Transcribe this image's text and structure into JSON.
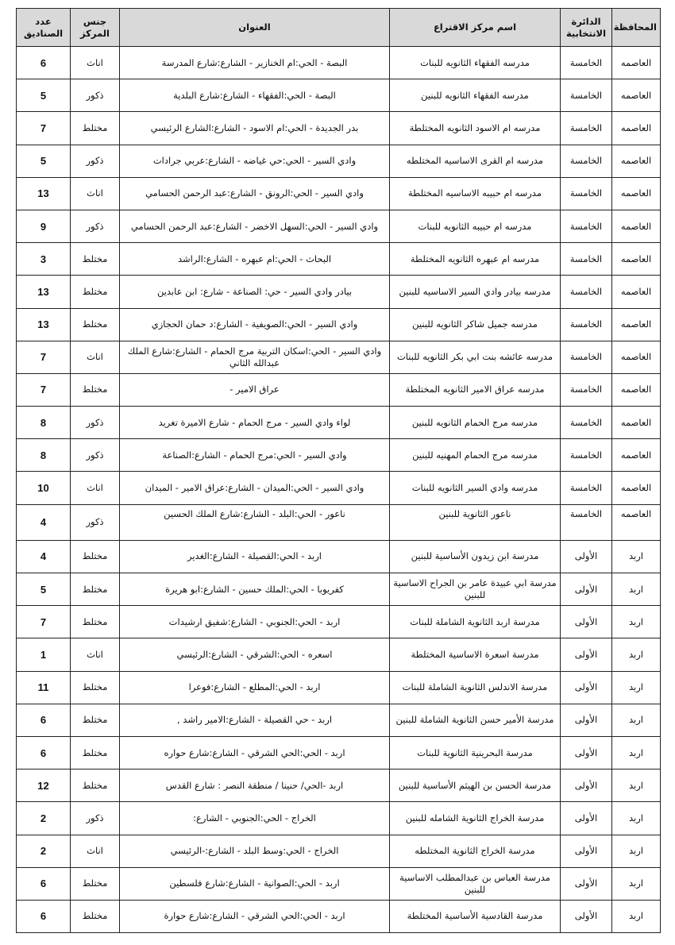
{
  "table": {
    "headers": {
      "governorate": "المحافظة",
      "district": "الدائرة الانتخابية",
      "center_name": "اسم مركز الاقتراع",
      "address": "العنوان",
      "center_gender": "جنس المركز",
      "box_count": "عدد الصناديق"
    },
    "rows": [
      [
        "العاصمه",
        "الخامسة",
        "مدرسه الفقهاء الثانويه للبنات",
        "البصة - الحي:ام الخنازير - الشارع:شارع المدرسة",
        "اناث",
        "6"
      ],
      [
        "العاصمه",
        "الخامسة",
        "مدرسه الفقهاء الثانويه للبنين",
        "البصة - الحي:الفقهاء - الشارع:شارع البلدية",
        "ذكور",
        "5"
      ],
      [
        "العاصمه",
        "الخامسة",
        "مدرسه ام الاسود الثانويه المختلطة",
        "بدر الجديدة - الحي:ام الاسود - الشارع:الشارع الرئيسي",
        "مختلط",
        "7"
      ],
      [
        "العاصمه",
        "الخامسة",
        "مدرسه ام القرى الاساسيه المختلطه",
        "وادي السير - الحي:حي غياضه - الشارع:عربي جرادات",
        "ذكور",
        "5"
      ],
      [
        "العاصمه",
        "الخامسة",
        "مدرسه ام حبيبه الاساسيه المختلطة",
        "وادي السير - الحي:الرونق - الشارع:عبد الرحمن الحسامي",
        "اناث",
        "13"
      ],
      [
        "العاصمه",
        "الخامسة",
        "مدرسه ام حبيبه الثانويه للبنات",
        "وادي السير - الحي:السهل الاخضر - الشارع:عبد الرحمن الحسامي",
        "ذكور",
        "9"
      ],
      [
        "العاصمه",
        "الخامسة",
        "مدرسه ام عبهره الثانويه المختلطة",
        "البحاث - الحي:ام عبهره - الشارع:الراشد",
        "مختلط",
        "3"
      ],
      [
        "العاصمه",
        "الخامسة",
        "مدرسه بيادر وادي السير الاساسيه للبنين",
        "بيادر وادي السير - حي: الصناعة - شارع: ابن عابدين",
        "مختلط",
        "13"
      ],
      [
        "العاصمه",
        "الخامسة",
        "مدرسه جميل شاكر الثانويه للبنين",
        "وادي السير - الحي:الصويفية - الشارع:د حمان الحجازي",
        "مختلط",
        "13"
      ],
      [
        "العاصمه",
        "الخامسة",
        "مدرسه عائشه بنت ابي بكر الثانويه للبنات",
        "وادي السير - الحي:اسكان التربية مرج الحمام - الشارع:شارع الملك عبدالله الثاني",
        "اناث",
        "7"
      ],
      [
        "العاصمه",
        "الخامسة",
        "مدرسه عراق الامير الثانويه المختلطة",
        "عراق الامير -",
        "مختلط",
        "7"
      ],
      [
        "العاصمه",
        "الخامسة",
        "مدرسه مرج الحمام الثانويه للبنين",
        "لواء وادي السير -  مرج الحمام - شارع الاميرة تغريد",
        "ذكور",
        "8"
      ],
      [
        "العاصمه",
        "الخامسة",
        "مدرسه مرج الحمام المهنيه للبنين",
        "وادي السير - الحي:مرج الحمام - الشارع:الصناعة",
        "ذكور",
        "8"
      ],
      [
        "العاصمه",
        "الخامسة",
        "مدرسه وادي السير الثانويه للبنات",
        "وادي السير - الحي:الميدان - الشارع:عراق  الامير - الميدان",
        "اناث",
        "10"
      ],
      [
        "العاصمه",
        "الخامسة",
        "ناعور الثانوية للبنين",
        "ناعور - الحي:البلد - الشارع:شارع الملك الحسين",
        "ذكور",
        "4"
      ],
      [
        "اربد",
        "الأولى",
        "مدرسة ابن زيدون الأساسية للبنين",
        "اربد - الحي:القصيلة - الشارع:الغدير",
        "مختلط",
        "4"
      ],
      [
        "اربد",
        "الأولى",
        "مدرسة ابي عبيدة عامر بن الجراح الاساسية للبنين",
        "كفريوبا - الحي:الملك حسين - الشارع:ابو هريرة",
        "مختلط",
        "5"
      ],
      [
        "اربد",
        "الأولى",
        "مدرسة اربد الثانوية الشاملة للبنات",
        "اربد - الحي:الجنوبي - الشارع:شفيق ارشيدات",
        "مختلط",
        "7"
      ],
      [
        "اربد",
        "الأولى",
        "مدرسة اسعرة الاساسية المختلطة",
        "اسعره - الحي:الشرقي - الشارع:الرئيسي",
        "اناث",
        "1"
      ],
      [
        "اربد",
        "الأولى",
        "مدرسة الاندلس الثانوية الشاملة للبنات",
        "اربد - الحي:المطلع - الشارع:فوعرا",
        "مختلط",
        "11"
      ],
      [
        "اربد",
        "الأولى",
        "مدرسة الأمير حسن الثانوية الشاملة للبنين",
        "اربد - حي القصيلة - الشارع:الامير راشد  ,",
        "مختلط",
        "6"
      ],
      [
        "اربد",
        "الأولى",
        "مدرسة البحرينية الثانوية للبنات",
        "اربد - الحي:الحي الشرقي - الشارع:شارع حواره",
        "مختلط",
        "6"
      ],
      [
        "اربد",
        "الأولى",
        "مدرسة الحسن بن الهيثم الأساسية للبنين",
        "اربد -الحي/ حنينا  / منطقة النصر : شارع القدس",
        "مختلط",
        "12"
      ],
      [
        "اربد",
        "الأولى",
        "مدرسة الخراج الثانوية الشامله للبنين",
        "الخراج - الحي:الجنوبي - الشارع:",
        "ذكور",
        "2"
      ],
      [
        "اربد",
        "الأولى",
        "مدرسة الخراج الثانوية المختلطه",
        "الخراج - الحي:وسط البلد - الشارع:-الرئيسي",
        "اناث",
        "2"
      ],
      [
        "اربد",
        "الأولى",
        "مدرسة العباس بن عبدالمطلب الاساسية للبنين",
        "اربد - الحي:الصوانية - الشارع:شارع فلسطين",
        "مختلط",
        "6"
      ],
      [
        "اربد",
        "الأولى",
        "مدرسة القادسية الأساسية المختلطة",
        "اربد - الحي:الحي الشرقي - الشارع:شارع حوارة",
        "مختلط",
        "6"
      ]
    ]
  }
}
